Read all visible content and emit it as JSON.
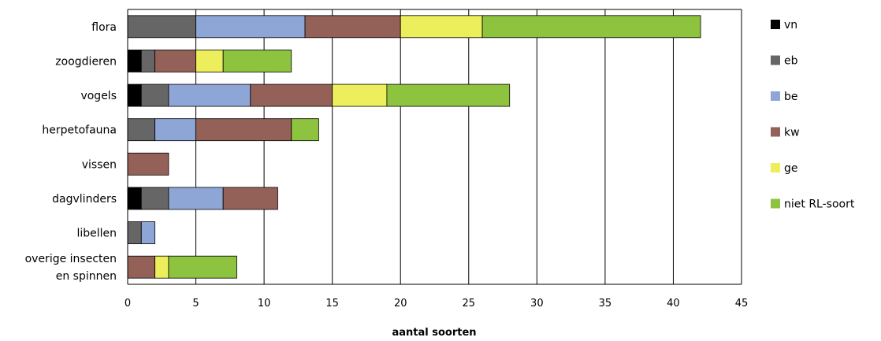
{
  "chart_data": {
    "type": "bar",
    "orientation": "horizontal",
    "stacked": true,
    "categories": [
      "flora",
      "zoogdieren",
      "vogels",
      "herpetofauna",
      "vissen",
      "dagvlinders",
      "libellen",
      "overige insecten en spinnen"
    ],
    "category_lines": [
      [
        "flora"
      ],
      [
        "zoogdieren"
      ],
      [
        "vogels"
      ],
      [
        "herpetofauna"
      ],
      [
        "vissen"
      ],
      [
        "dagvlinders"
      ],
      [
        "libellen"
      ],
      [
        "overige insecten",
        "en spinnen"
      ]
    ],
    "series": [
      {
        "name": "vn",
        "color": "#000000",
        "values": [
          0,
          1,
          1,
          0,
          0,
          1,
          0,
          0
        ]
      },
      {
        "name": "eb",
        "color": "#666666",
        "values": [
          5,
          1,
          2,
          2,
          0,
          2,
          1,
          0
        ]
      },
      {
        "name": "be",
        "color": "#8EA6D6",
        "values": [
          8,
          0,
          6,
          3,
          0,
          4,
          1,
          0
        ]
      },
      {
        "name": "kw",
        "color": "#946158",
        "values": [
          7,
          3,
          6,
          7,
          3,
          4,
          0,
          2
        ]
      },
      {
        "name": "ge",
        "color": "#EDEE5B",
        "values": [
          6,
          2,
          4,
          0,
          0,
          0,
          0,
          1
        ]
      },
      {
        "name": "niet RL-soort",
        "color": "#8DC33E",
        "values": [
          16,
          5,
          9,
          2,
          0,
          0,
          0,
          5
        ]
      }
    ],
    "xlim": [
      0,
      45
    ],
    "xticks": [
      "0",
      "5",
      "10",
      "15",
      "20",
      "25",
      "30",
      "35",
      "40",
      "45"
    ],
    "xlabel": "aantal soorten",
    "ylabel": "",
    "title": "",
    "grid": "vertical",
    "legend": "right"
  }
}
